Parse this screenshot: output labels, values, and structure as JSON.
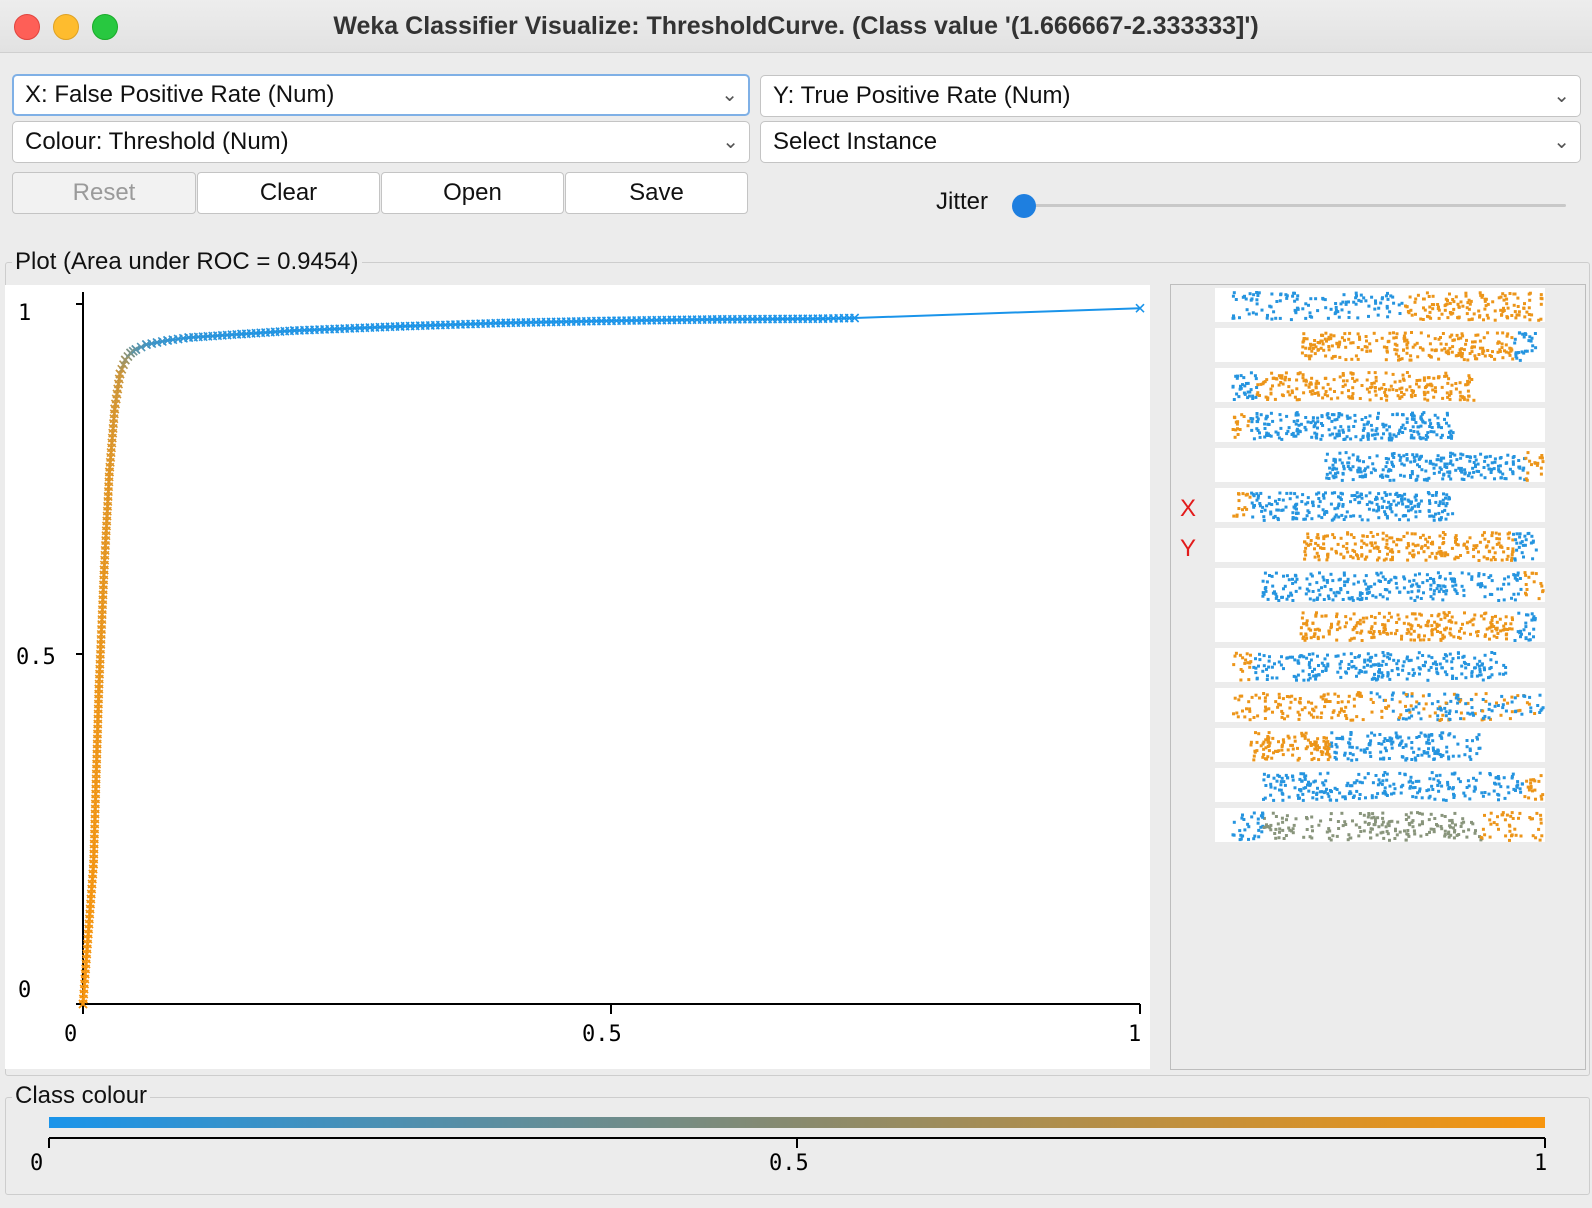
{
  "window": {
    "title": "Weka Classifier Visualize: ThresholdCurve. (Class value '(1.666667-2.333333]')"
  },
  "controls": {
    "x_axis": "X: False Positive Rate (Num)",
    "y_axis": "Y: True Positive Rate (Num)",
    "colour": "Colour: Threshold (Num)",
    "select_instance": "Select Instance",
    "buttons": {
      "reset": "Reset",
      "clear": "Clear",
      "open": "Open",
      "save": "Save"
    },
    "jitter_label": "Jitter",
    "jitter_value": 0
  },
  "plot": {
    "group_label": "Plot (Area under ROC = 0.9454)",
    "x_ticks": [
      "0",
      "0.5",
      "1"
    ],
    "y_ticks": [
      "1",
      "0.5",
      "0"
    ]
  },
  "attribute_panel": {
    "x_marker": "X",
    "y_marker": "Y"
  },
  "class_colour": {
    "label": "Class colour",
    "ticks": [
      "0",
      "0.5",
      "1"
    ],
    "min_color": "#1a94ea",
    "max_color": "#f7950e"
  },
  "chart_data": {
    "type": "line",
    "title": "Plot (Area under ROC = 0.9454)",
    "xlabel": "False Positive Rate",
    "ylabel": "True Positive Rate",
    "xlim": [
      0,
      1
    ],
    "ylim": [
      0,
      1
    ],
    "colour_by": "Threshold",
    "x": [
      0,
      0.01,
      0.015,
      0.02,
      0.025,
      0.03,
      0.035,
      0.04,
      0.045,
      0.05,
      0.06,
      0.08,
      0.1,
      0.15,
      0.2,
      0.3,
      0.4,
      0.5,
      0.6,
      0.7,
      0.73,
      1.0
    ],
    "y": [
      0,
      0.2,
      0.45,
      0.62,
      0.76,
      0.85,
      0.9,
      0.92,
      0.93,
      0.935,
      0.942,
      0.948,
      0.952,
      0.957,
      0.962,
      0.968,
      0.973,
      0.976,
      0.978,
      0.979,
      0.98,
      0.994
    ],
    "threshold": [
      1.0,
      0.98,
      0.95,
      0.92,
      0.9,
      0.85,
      0.8,
      0.6,
      0.45,
      0.3,
      0.2,
      0.12,
      0.08,
      0.05,
      0.03,
      0.02,
      0.015,
      0.01,
      0.008,
      0.006,
      0.005,
      0.0
    ]
  }
}
